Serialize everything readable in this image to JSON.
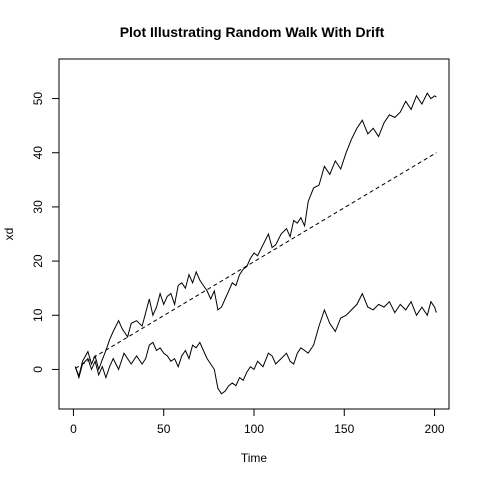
{
  "chart_data": {
    "type": "line",
    "title": "Plot Illustrating Random Walk With Drift",
    "xlabel": "Time",
    "ylabel": "xd",
    "xlim": [
      -8,
      208
    ],
    "ylim": [
      -7.3,
      57.3
    ],
    "x_ticks": [
      0,
      50,
      100,
      150,
      200
    ],
    "y_ticks": [
      0,
      10,
      20,
      30,
      40,
      50
    ],
    "grid": false,
    "legend": "none",
    "series": [
      {
        "style": "solid",
        "x": [
          1,
          3,
          5,
          8,
          10,
          12,
          14,
          16,
          18,
          20,
          22,
          25,
          27,
          30,
          32,
          35,
          38,
          40,
          42,
          44,
          46,
          48,
          50,
          52,
          54,
          56,
          58,
          60,
          62,
          64,
          66,
          68,
          70,
          72,
          74,
          76,
          78,
          80,
          82,
          84,
          86,
          88,
          90,
          92,
          94,
          96,
          98,
          100,
          102,
          105,
          108,
          110,
          112,
          115,
          118,
          120,
          122,
          124,
          126,
          128,
          130,
          133,
          136,
          139,
          142,
          145,
          148,
          151,
          154,
          157,
          160,
          163,
          166,
          169,
          172,
          175,
          178,
          181,
          184,
          187,
          190,
          193,
          196,
          198,
          200,
          201
        ],
        "y": [
          0.5,
          -1.2,
          1.5,
          3.3,
          1.0,
          2.5,
          0.0,
          1.8,
          3.5,
          5.5,
          7.0,
          9.0,
          7.5,
          6.0,
          8.5,
          9.0,
          8.0,
          10.5,
          13.0,
          10.0,
          11.5,
          14.0,
          12.0,
          13.5,
          14.0,
          12.0,
          15.5,
          16.0,
          15.0,
          17.5,
          16.0,
          18.0,
          16.5,
          15.5,
          14.5,
          13.0,
          14.5,
          11.0,
          11.5,
          13.0,
          14.5,
          16.0,
          15.5,
          17.5,
          18.5,
          19.0,
          20.5,
          21.5,
          21.0,
          23.0,
          25.0,
          22.5,
          23.0,
          25.0,
          26.0,
          24.5,
          27.5,
          27.0,
          28.0,
          26.5,
          31.0,
          33.5,
          34.0,
          37.5,
          36.0,
          38.5,
          37.0,
          40.0,
          42.5,
          44.5,
          46.0,
          43.5,
          44.5,
          43.0,
          45.5,
          47.0,
          46.5,
          47.5,
          49.5,
          48.0,
          50.5,
          49.0,
          51.0,
          50.0,
          50.5,
          50.3
        ]
      },
      {
        "style": "dashed",
        "x": [
          1,
          201
        ],
        "y": [
          0.2,
          40.0
        ]
      },
      {
        "style": "solid",
        "x": [
          1,
          3,
          5,
          8,
          10,
          12,
          14,
          16,
          18,
          20,
          22,
          25,
          28,
          30,
          32,
          35,
          38,
          40,
          42,
          44,
          46,
          48,
          50,
          52,
          54,
          56,
          58,
          60,
          62,
          64,
          66,
          68,
          70,
          72,
          74,
          76,
          78,
          80,
          82,
          84,
          86,
          88,
          90,
          92,
          94,
          96,
          98,
          100,
          102,
          105,
          108,
          110,
          112,
          115,
          118,
          120,
          122,
          124,
          126,
          128,
          130,
          133,
          136,
          139,
          142,
          145,
          148,
          151,
          154,
          157,
          160,
          163,
          166,
          169,
          172,
          175,
          178,
          181,
          184,
          187,
          190,
          193,
          196,
          198,
          200,
          201
        ],
        "y": [
          0.5,
          -1.5,
          1.0,
          2.0,
          0.0,
          1.5,
          -1.0,
          0.5,
          -1.5,
          0.5,
          2.0,
          0.0,
          3.0,
          2.0,
          1.0,
          2.5,
          1.0,
          2.0,
          4.5,
          5.0,
          3.5,
          4.0,
          3.0,
          2.5,
          1.5,
          2.0,
          0.5,
          2.5,
          3.5,
          2.0,
          4.5,
          4.0,
          5.0,
          3.5,
          2.0,
          1.0,
          0.0,
          -3.5,
          -4.5,
          -4.0,
          -3.0,
          -2.5,
          -3.0,
          -1.5,
          -2.0,
          -0.5,
          0.5,
          0.0,
          1.5,
          0.5,
          3.0,
          2.5,
          1.0,
          2.0,
          3.0,
          1.5,
          1.0,
          3.0,
          4.0,
          3.5,
          3.0,
          4.5,
          8.0,
          11.0,
          8.5,
          7.0,
          9.5,
          10.0,
          11.0,
          12.0,
          14.0,
          11.5,
          11.0,
          12.0,
          11.5,
          12.5,
          10.5,
          12.0,
          11.0,
          12.5,
          10.0,
          11.5,
          10.0,
          12.5,
          11.5,
          10.5
        ]
      }
    ]
  }
}
